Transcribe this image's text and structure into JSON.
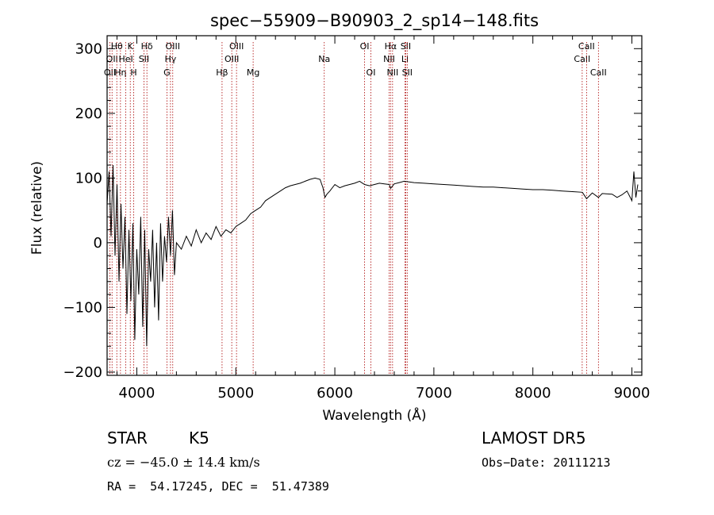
{
  "chart_data": {
    "type": "line",
    "title": "spec−55909−B90903_2_sp14−148.fits",
    "xlabel": "Wavelength (Å)",
    "ylabel": "Flux (relative)",
    "xlim": [
      3700,
      9100
    ],
    "ylim": [
      -205,
      320
    ],
    "xticks": [
      4000,
      5000,
      6000,
      7000,
      8000,
      9000
    ],
    "xtick_labels": [
      "4000",
      "5000",
      "6000",
      "7000",
      "8000",
      "9000"
    ],
    "yticks": [
      -200,
      -100,
      0,
      100,
      200,
      300
    ],
    "ytick_labels": [
      "−200",
      "−100",
      "0",
      "100",
      "200",
      "300"
    ],
    "grid": false,
    "series": [
      {
        "color": "#000000",
        "x": [
          3700,
          3720,
          3740,
          3760,
          3780,
          3800,
          3820,
          3840,
          3860,
          3880,
          3900,
          3920,
          3940,
          3960,
          3980,
          4000,
          4020,
          4040,
          4060,
          4080,
          4100,
          4120,
          4140,
          4160,
          4180,
          4200,
          4220,
          4240,
          4260,
          4280,
          4300,
          4320,
          4340,
          4360,
          4380,
          4400,
          4450,
          4500,
          4550,
          4600,
          4650,
          4700,
          4750,
          4800,
          4850,
          4900,
          4950,
          5000,
          5050,
          5100,
          5150,
          5200,
          5250,
          5300,
          5350,
          5400,
          5450,
          5500,
          5550,
          5600,
          5650,
          5700,
          5750,
          5800,
          5850,
          5880,
          5900,
          5920,
          5950,
          6000,
          6050,
          6100,
          6150,
          6200,
          6250,
          6300,
          6350,
          6400,
          6450,
          6500,
          6550,
          6563,
          6600,
          6650,
          6700,
          6750,
          6800,
          6900,
          7000,
          7100,
          7200,
          7300,
          7400,
          7500,
          7600,
          7700,
          7800,
          7900,
          8000,
          8100,
          8200,
          8300,
          8400,
          8500,
          8542,
          8600,
          8662,
          8700,
          8800,
          8850,
          8900,
          8950,
          9000,
          9020,
          9040,
          9060
        ],
        "y": [
          60,
          110,
          10,
          120,
          -20,
          90,
          -60,
          60,
          -40,
          40,
          -110,
          20,
          -90,
          30,
          -150,
          -10,
          -80,
          40,
          -130,
          20,
          -160,
          -10,
          -60,
          20,
          -100,
          0,
          -120,
          30,
          -60,
          10,
          -30,
          40,
          -20,
          50,
          -50,
          0,
          -10,
          10,
          -5,
          20,
          0,
          15,
          5,
          25,
          10,
          20,
          15,
          25,
          30,
          35,
          45,
          50,
          55,
          65,
          70,
          75,
          80,
          85,
          88,
          90,
          92,
          95,
          98,
          100,
          98,
          85,
          70,
          75,
          80,
          90,
          85,
          88,
          90,
          92,
          95,
          90,
          88,
          90,
          92,
          91,
          90,
          84,
          91,
          93,
          95,
          94,
          93,
          92,
          91,
          90,
          89,
          88,
          87,
          86,
          86,
          85,
          84,
          83,
          82,
          82,
          81,
          80,
          79,
          78,
          68,
          77,
          70,
          76,
          75,
          70,
          74,
          80,
          65,
          110,
          70,
          90
        ]
      }
    ],
    "lines": [
      {
        "wave": 3728,
        "label": "OII",
        "row": 3
      },
      {
        "wave": 3750,
        "label": "OII",
        "row": 2
      },
      {
        "wave": 3798,
        "label": "Hθ",
        "row": 1
      },
      {
        "wave": 3835,
        "label": "Hη",
        "row": 3
      },
      {
        "wave": 3889,
        "label": "HeI",
        "row": 2
      },
      {
        "wave": 3934,
        "label": "K",
        "row": 1
      },
      {
        "wave": 3969,
        "label": "H",
        "row": 3
      },
      {
        "wave": 4072,
        "label": "SII",
        "row": 2
      },
      {
        "wave": 4102,
        "label": "Hδ",
        "row": 1
      },
      {
        "wave": 4304,
        "label": "G",
        "row": 3
      },
      {
        "wave": 4340,
        "label": "Hγ",
        "row": 2
      },
      {
        "wave": 4363,
        "label": "OIII",
        "row": 1
      },
      {
        "wave": 4861,
        "label": "Hβ",
        "row": 3
      },
      {
        "wave": 4959,
        "label": "OIII",
        "row": 2
      },
      {
        "wave": 5007,
        "label": "OIII",
        "row": 1
      },
      {
        "wave": 5175,
        "label": "Mg",
        "row": 3
      },
      {
        "wave": 5893,
        "label": "Na",
        "row": 2
      },
      {
        "wave": 6300,
        "label": "OI",
        "row": 1
      },
      {
        "wave": 6364,
        "label": "OI",
        "row": 3
      },
      {
        "wave": 6548,
        "label": "NII",
        "row": 2
      },
      {
        "wave": 6563,
        "label": "Hα",
        "row": 1
      },
      {
        "wave": 6583,
        "label": "NII",
        "row": 3
      },
      {
        "wave": 6708,
        "label": "Li",
        "row": 2
      },
      {
        "wave": 6716,
        "label": "SII",
        "row": 1
      },
      {
        "wave": 6731,
        "label": "SII",
        "row": 3
      },
      {
        "wave": 8498,
        "label": "CaII",
        "row": 2
      },
      {
        "wave": 8542,
        "label": "CaII",
        "row": 1
      },
      {
        "wave": 8662,
        "label": "CaII",
        "row": 3
      }
    ],
    "line_color": "#aa0000"
  },
  "info": {
    "object": "STAR",
    "subclass": "K5",
    "survey": "LAMOST DR5",
    "cz": "cz = −45.0 ± 14.4 km/s",
    "obs_date": "Obs−Date: 20111213",
    "coords": "RA =  54.17245, DEC =  51.47389"
  }
}
